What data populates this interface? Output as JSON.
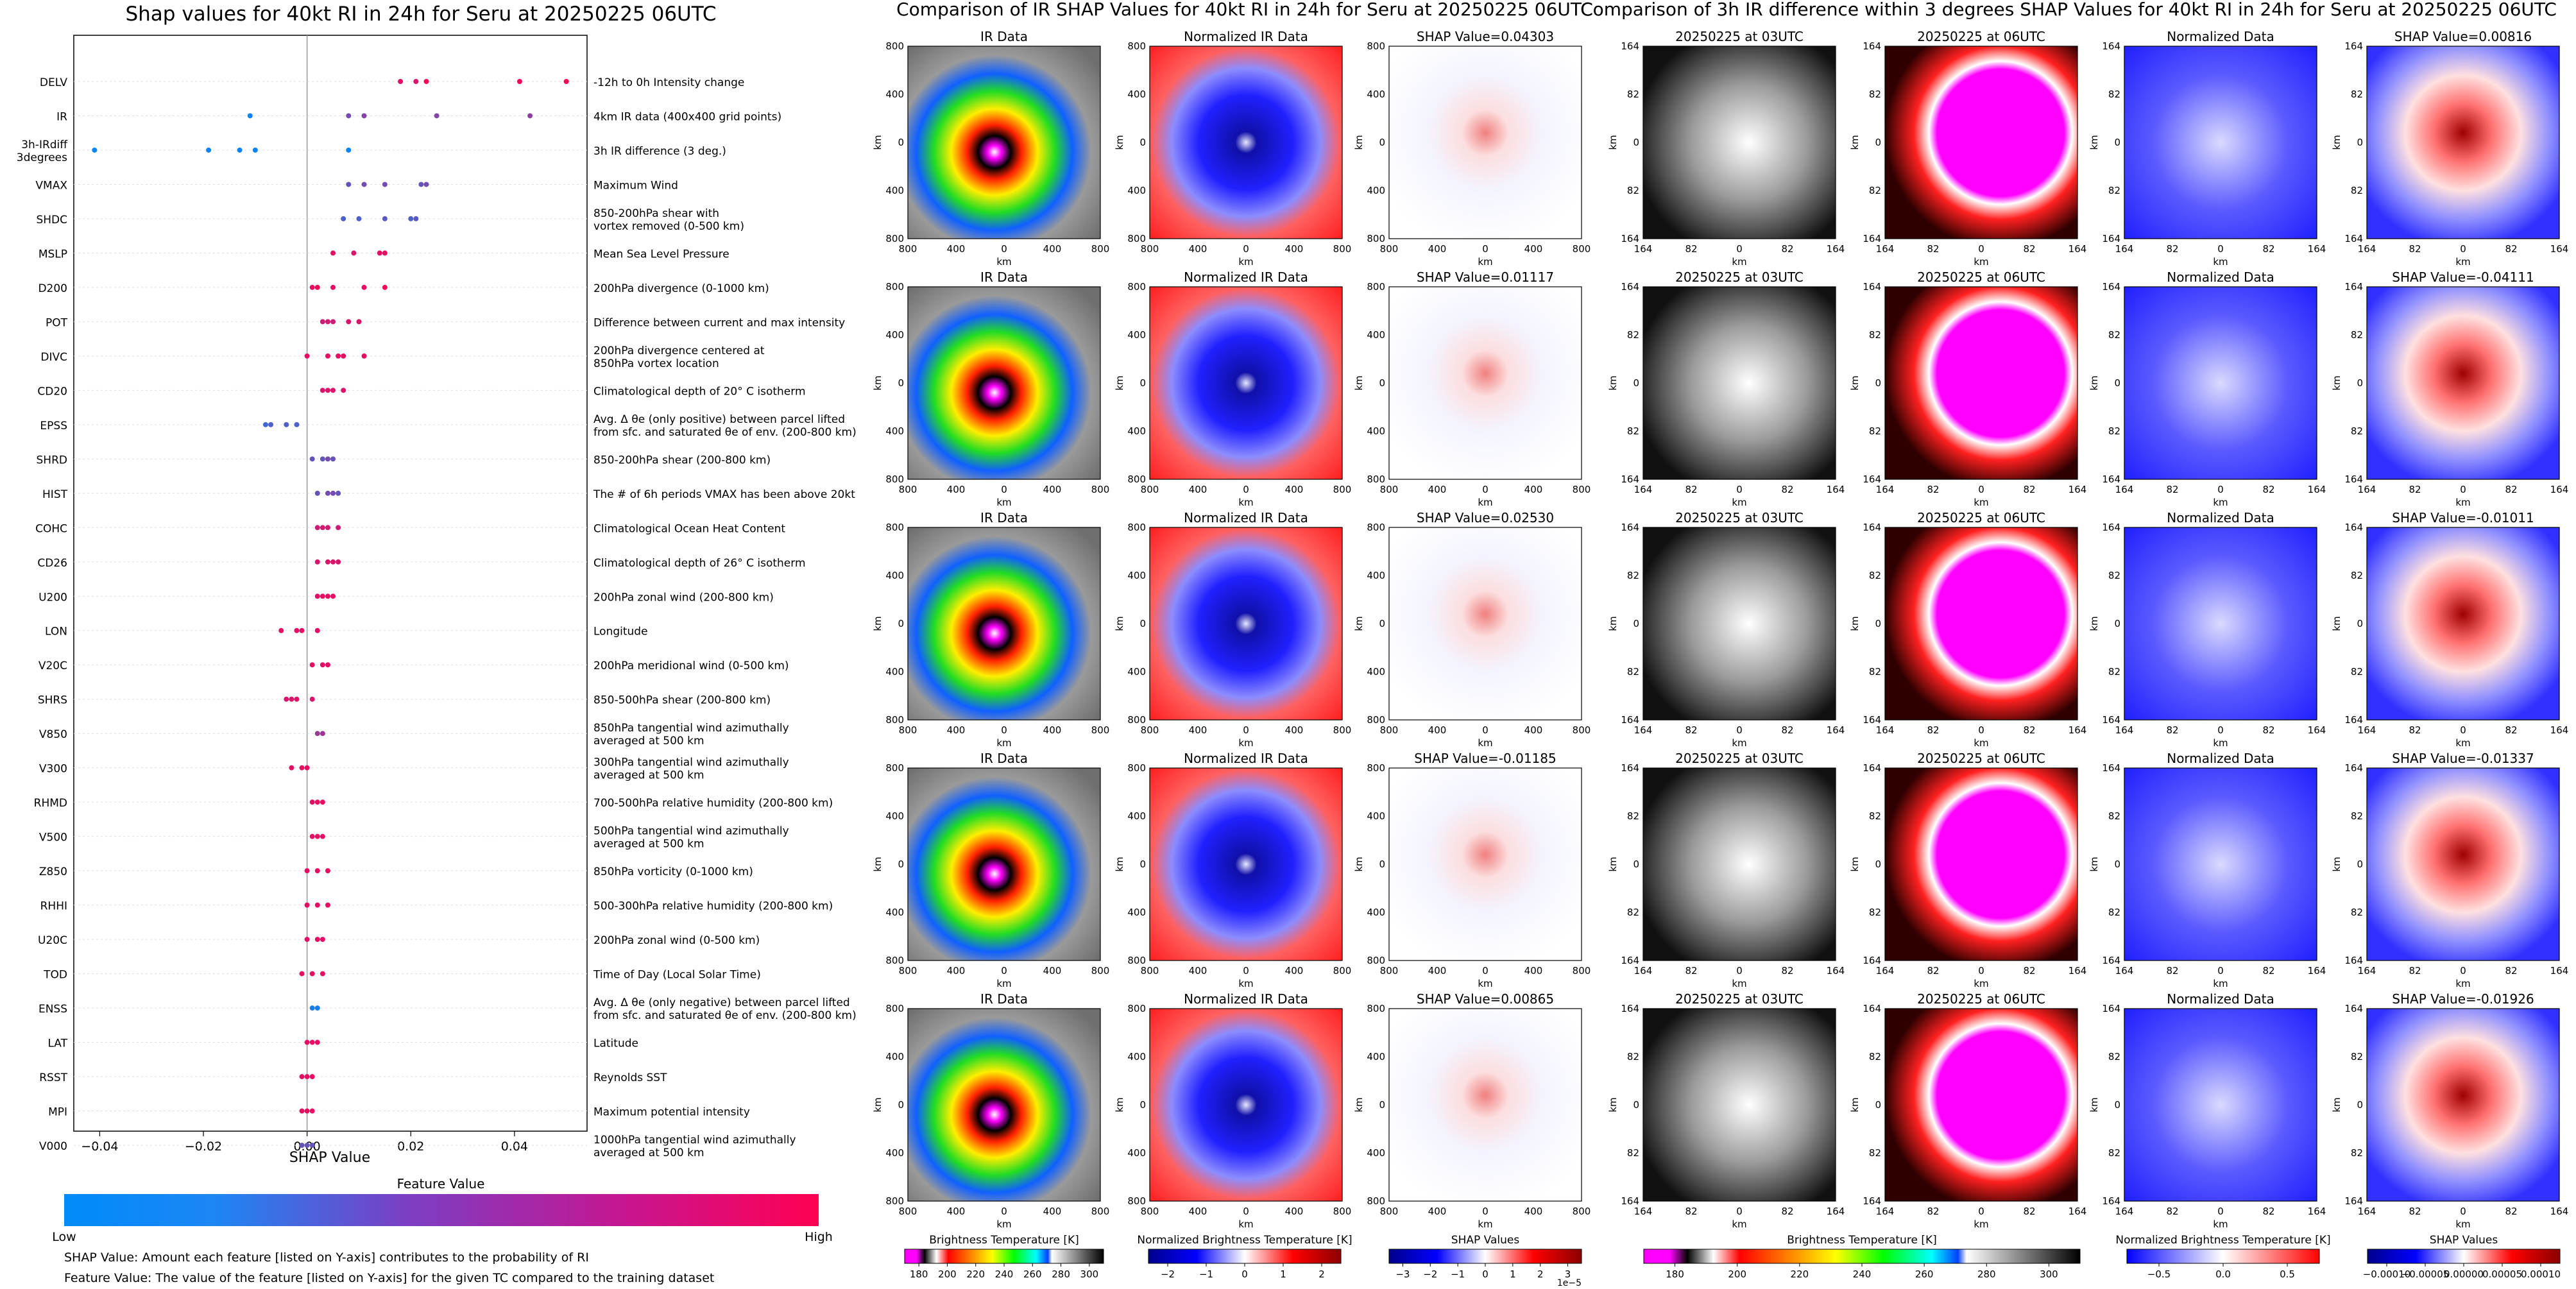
{
  "figure": {
    "left_title": "Shap values for 40kt RI in 24h for Seru at 20250225 06UTC",
    "mid_title": "Comparison of IR SHAP Values for 40kt RI in 24h for Seru at 20250225 06UTC",
    "right_title": "Comparison of 3h IR difference within 3 degrees SHAP Values for 40kt RI in 24h for Seru at 20250225 06UTC",
    "xlabel": "SHAP Value",
    "feature_value_label": "Feature Value",
    "low_label": "Low",
    "high_label": "High",
    "note1": "SHAP Value: Amount each feature [listed on Y-axis] contributes to the probability of RI",
    "note2": "Feature Value: The value of the feature [listed on Y-axis] for the given TC compared to the training dataset",
    "km": "km",
    "km_ticks": [
      "800",
      "400",
      "0",
      "400",
      "800"
    ],
    "deg_ticks": [
      "164",
      "82",
      "0",
      "82",
      "164"
    ],
    "colorbar_titles": [
      "Brightness Temperature [K]",
      "Normalized Brightness Temperature [K]",
      "SHAP Values",
      "Brightness Temperature [K]",
      "Normalized Brightness Temperature [K]",
      "SHAP Values"
    ],
    "colorbar_ticks": [
      [
        "180",
        "200",
        "220",
        "240",
        "260",
        "280",
        "300"
      ],
      [
        "−2",
        "−1",
        "0",
        "1",
        "2"
      ],
      [
        "−3",
        "−2",
        "−1",
        "0",
        "1",
        "2",
        "3"
      ],
      [
        "180",
        "200",
        "220",
        "240",
        "260",
        "280",
        "300"
      ],
      [
        "−0.5",
        "0.0",
        "0.5"
      ],
      [
        "−0.00010",
        "−0.00005",
        "0.00000",
        "0.00005",
        "0.00010"
      ]
    ],
    "colorbar_offset": "1e−5",
    "colors": {
      "low": "#008bfb",
      "high": "#ff0052"
    }
  },
  "panel_grid": [
    {
      "ir_title": "IR Data",
      "nir_title": "Normalized IR Data",
      "shap_title": "SHAP Value=0.04303",
      "t1_title": "20250225 at 03UTC",
      "t2_title": "20250225 at 06UTC",
      "nd_title": "Normalized Data",
      "dshap_title": "SHAP Value=0.00816"
    },
    {
      "ir_title": "IR Data",
      "nir_title": "Normalized IR Data",
      "shap_title": "SHAP Value=0.01117",
      "t1_title": "20250225 at 03UTC",
      "t2_title": "20250225 at 06UTC",
      "nd_title": "Normalized Data",
      "dshap_title": "SHAP Value=-0.04111"
    },
    {
      "ir_title": "IR Data",
      "nir_title": "Normalized IR Data",
      "shap_title": "SHAP Value=0.02530",
      "t1_title": "20250225 at 03UTC",
      "t2_title": "20250225 at 06UTC",
      "nd_title": "Normalized Data",
      "dshap_title": "SHAP Value=-0.01011"
    },
    {
      "ir_title": "IR Data",
      "nir_title": "Normalized IR Data",
      "shap_title": "SHAP Value=-0.01185",
      "t1_title": "20250225 at 03UTC",
      "t2_title": "20250225 at 06UTC",
      "nd_title": "Normalized Data",
      "dshap_title": "SHAP Value=-0.01337"
    },
    {
      "ir_title": "IR Data",
      "nir_title": "Normalized IR Data",
      "shap_title": "SHAP Value=0.00865",
      "t1_title": "20250225 at 03UTC",
      "t2_title": "20250225 at 06UTC",
      "nd_title": "Normalized Data",
      "dshap_title": "SHAP Value=-0.01926"
    }
  ],
  "chart_data": {
    "type": "scatter",
    "title": "Shap values for 40kt RI in 24h for Seru at 20250225 06UTC",
    "xlabel": "SHAP Value",
    "xlim": [
      -0.045,
      0.054
    ],
    "xticks": [
      "−0.04",
      "−0.02",
      "0.00",
      "0.02",
      "0.04"
    ],
    "xtick_values": [
      -0.04,
      -0.02,
      0.0,
      0.02,
      0.04
    ],
    "legend": "Feature Value colour bar (Low to High), bottom",
    "features": [
      {
        "code": "DELV",
        "desc": [
          "-12h to 0h Intensity change"
        ],
        "points": [
          [
            0.018,
            0.9
          ],
          [
            0.021,
            0.85
          ],
          [
            0.023,
            0.95
          ],
          [
            0.041,
            0.95
          ],
          [
            0.05,
            1.0
          ]
        ]
      },
      {
        "code": "IR",
        "desc": [
          "4km IR data (400x400 grid points)"
        ],
        "points": [
          [
            -0.011,
            0.05
          ],
          [
            0.008,
            0.45
          ],
          [
            0.011,
            0.5
          ],
          [
            0.025,
            0.5
          ],
          [
            0.043,
            0.55
          ]
        ]
      },
      {
        "code": "3h-IRdiff\n3degrees",
        "desc": [
          "3h IR difference (3 deg.)"
        ],
        "points": [
          [
            -0.041,
            0.05
          ],
          [
            -0.019,
            0.05
          ],
          [
            -0.013,
            0.05
          ],
          [
            -0.01,
            0.05
          ],
          [
            0.008,
            0.05
          ]
        ]
      },
      {
        "code": "VMAX",
        "desc": [
          "Maximum Wind"
        ],
        "points": [
          [
            0.008,
            0.4
          ],
          [
            0.011,
            0.45
          ],
          [
            0.015,
            0.45
          ],
          [
            0.022,
            0.4
          ],
          [
            0.023,
            0.45
          ]
        ]
      },
      {
        "code": "SHDC",
        "desc": [
          "850-200hPa shear with",
          "vortex removed (0-500 km)"
        ],
        "points": [
          [
            0.007,
            0.3
          ],
          [
            0.01,
            0.3
          ],
          [
            0.015,
            0.35
          ],
          [
            0.02,
            0.3
          ],
          [
            0.021,
            0.35
          ]
        ]
      },
      {
        "code": "MSLP",
        "desc": [
          "Mean Sea Level Pressure"
        ],
        "points": [
          [
            0.005,
            0.9
          ],
          [
            0.009,
            0.85
          ],
          [
            0.014,
            0.9
          ],
          [
            0.015,
            0.9
          ]
        ]
      },
      {
        "code": "D200",
        "desc": [
          "200hPa divergence (0-1000 km)"
        ],
        "points": [
          [
            0.001,
            0.9
          ],
          [
            0.002,
            0.95
          ],
          [
            0.005,
            0.9
          ],
          [
            0.011,
            0.9
          ],
          [
            0.015,
            0.95
          ]
        ]
      },
      {
        "code": "POT",
        "desc": [
          "Difference between current and max intensity"
        ],
        "points": [
          [
            0.003,
            0.8
          ],
          [
            0.004,
            0.8
          ],
          [
            0.005,
            0.8
          ],
          [
            0.008,
            0.85
          ],
          [
            0.01,
            0.85
          ]
        ]
      },
      {
        "code": "DIVC",
        "desc": [
          "200hPa divergence centered at",
          "850hPa vortex location"
        ],
        "points": [
          [
            0.0,
            0.9
          ],
          [
            0.004,
            0.9
          ],
          [
            0.006,
            0.9
          ],
          [
            0.007,
            0.9
          ],
          [
            0.011,
            0.9
          ]
        ]
      },
      {
        "code": "CD20",
        "desc": [
          "Climatological depth of 20° C isotherm"
        ],
        "points": [
          [
            0.003,
            0.85
          ],
          [
            0.004,
            0.85
          ],
          [
            0.005,
            0.85
          ],
          [
            0.007,
            0.85
          ]
        ]
      },
      {
        "code": "EPSS",
        "desc": [
          "Avg. Δ θe (only positive) between parcel lifted",
          "from sfc. and saturated θe of env. (200-800 km)"
        ],
        "points": [
          [
            -0.008,
            0.25
          ],
          [
            -0.007,
            0.3
          ],
          [
            -0.004,
            0.3
          ],
          [
            -0.002,
            0.3
          ]
        ]
      },
      {
        "code": "SHRD",
        "desc": [
          "850-200hPa shear (200-800 km)"
        ],
        "points": [
          [
            0.001,
            0.4
          ],
          [
            0.003,
            0.4
          ],
          [
            0.004,
            0.45
          ],
          [
            0.005,
            0.4
          ]
        ]
      },
      {
        "code": "HIST",
        "desc": [
          "The # of 6h periods VMAX has been above 20kt"
        ],
        "points": [
          [
            0.002,
            0.4
          ],
          [
            0.004,
            0.45
          ],
          [
            0.005,
            0.45
          ],
          [
            0.006,
            0.4
          ]
        ]
      },
      {
        "code": "COHC",
        "desc": [
          "Climatological Ocean Heat Content"
        ],
        "points": [
          [
            0.002,
            0.8
          ],
          [
            0.003,
            0.8
          ],
          [
            0.004,
            0.8
          ],
          [
            0.006,
            0.8
          ]
        ]
      },
      {
        "code": "CD26",
        "desc": [
          "Climatological depth of 26° C isotherm"
        ],
        "points": [
          [
            0.002,
            0.85
          ],
          [
            0.004,
            0.85
          ],
          [
            0.005,
            0.85
          ],
          [
            0.006,
            0.85
          ]
        ]
      },
      {
        "code": "U200",
        "desc": [
          "200hPa zonal wind (200-800 km)"
        ],
        "points": [
          [
            0.002,
            0.9
          ],
          [
            0.003,
            0.9
          ],
          [
            0.004,
            0.9
          ],
          [
            0.005,
            0.9
          ]
        ]
      },
      {
        "code": "LON",
        "desc": [
          "Longitude"
        ],
        "points": [
          [
            -0.005,
            0.9
          ],
          [
            -0.002,
            0.9
          ],
          [
            -0.001,
            0.9
          ],
          [
            0.002,
            0.9
          ]
        ]
      },
      {
        "code": "V20C",
        "desc": [
          "200hPa meridional wind (0-500 km)"
        ],
        "points": [
          [
            0.001,
            0.9
          ],
          [
            0.003,
            0.9
          ],
          [
            0.004,
            0.9
          ]
        ]
      },
      {
        "code": "SHRS",
        "desc": [
          "850-500hPa shear (200-800 km)"
        ],
        "points": [
          [
            -0.004,
            0.85
          ],
          [
            -0.003,
            0.85
          ],
          [
            -0.002,
            0.85
          ],
          [
            0.001,
            0.85
          ]
        ]
      },
      {
        "code": "V850",
        "desc": [
          "850hPa tangential wind azimuthally",
          "averaged at 500 km"
        ],
        "points": [
          [
            0.002,
            0.6
          ],
          [
            0.003,
            0.6
          ]
        ]
      },
      {
        "code": "V300",
        "desc": [
          "300hPa tangential wind azimuthally",
          "averaged at 500 km"
        ],
        "points": [
          [
            -0.003,
            0.9
          ],
          [
            -0.001,
            0.9
          ],
          [
            0.0,
            0.9
          ]
        ]
      },
      {
        "code": "RHMD",
        "desc": [
          "700-500hPa relative humidity (200-800 km)"
        ],
        "points": [
          [
            0.001,
            0.9
          ],
          [
            0.002,
            0.9
          ],
          [
            0.003,
            0.9
          ]
        ]
      },
      {
        "code": "V500",
        "desc": [
          "500hPa tangential wind azimuthally",
          "averaged at 500 km"
        ],
        "points": [
          [
            0.001,
            0.9
          ],
          [
            0.002,
            0.9
          ],
          [
            0.003,
            0.9
          ]
        ]
      },
      {
        "code": "Z850",
        "desc": [
          "850hPa vorticity (0-1000 km)"
        ],
        "points": [
          [
            0.0,
            0.9
          ],
          [
            0.002,
            0.9
          ],
          [
            0.004,
            0.9
          ]
        ]
      },
      {
        "code": "RHHI",
        "desc": [
          "500-300hPa relative humidity (200-800 km)"
        ],
        "points": [
          [
            0.0,
            0.9
          ],
          [
            0.002,
            0.9
          ],
          [
            0.004,
            0.9
          ]
        ]
      },
      {
        "code": "U20C",
        "desc": [
          "200hPa zonal wind (0-500 km)"
        ],
        "points": [
          [
            0.0,
            0.9
          ],
          [
            0.002,
            0.9
          ],
          [
            0.003,
            0.9
          ]
        ]
      },
      {
        "code": "TOD",
        "desc": [
          "Time of Day (Local Solar Time)"
        ],
        "points": [
          [
            -0.001,
            0.9
          ],
          [
            0.001,
            0.9
          ],
          [
            0.003,
            0.9
          ]
        ]
      },
      {
        "code": "ENSS",
        "desc": [
          "Avg. Δ θe (only negative) between parcel lifted",
          "from sfc. and saturated θe of env. (200-800 km)"
        ],
        "points": [
          [
            0.001,
            0.1
          ],
          [
            0.002,
            0.1
          ]
        ]
      },
      {
        "code": "LAT",
        "desc": [
          "Latitude"
        ],
        "points": [
          [
            0.0,
            0.9
          ],
          [
            0.001,
            0.9
          ],
          [
            0.002,
            0.9
          ]
        ]
      },
      {
        "code": "RSST",
        "desc": [
          "Reynolds SST"
        ],
        "points": [
          [
            -0.001,
            0.9
          ],
          [
            0.0,
            0.9
          ],
          [
            0.001,
            0.9
          ]
        ]
      },
      {
        "code": "MPI",
        "desc": [
          "Maximum potential intensity"
        ],
        "points": [
          [
            -0.001,
            0.9
          ],
          [
            0.0,
            0.9
          ],
          [
            0.001,
            0.9
          ]
        ]
      },
      {
        "code": "V000",
        "desc": [
          "1000hPa tangential wind azimuthally",
          "averaged at 500 km"
        ],
        "points": [
          [
            -0.001,
            0.4
          ],
          [
            0.0,
            0.4
          ],
          [
            0.001,
            0.4
          ]
        ]
      }
    ]
  }
}
